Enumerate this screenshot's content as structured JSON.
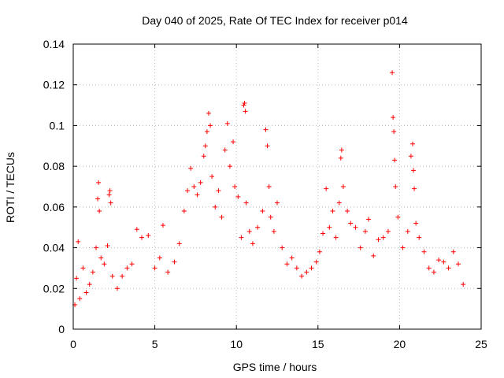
{
  "chart_data": {
    "type": "scatter",
    "title": "Day 040 of 2025, Rate Of TEC Index for receiver p014",
    "xlabel": "GPS time / hours",
    "ylabel": "ROTI / TECUs",
    "xlim": [
      0,
      25
    ],
    "ylim": [
      0,
      0.14
    ],
    "xticks": [
      0,
      5,
      10,
      15,
      20,
      25
    ],
    "yticks": [
      0,
      0.02,
      0.04,
      0.06,
      0.08,
      0.1,
      0.12,
      0.14
    ],
    "xtick_labels": [
      "0",
      "5",
      "10",
      "15",
      "20",
      "25"
    ],
    "ytick_labels": [
      "0",
      "0.02",
      "0.04",
      "0.06",
      "0.08",
      "0.1",
      "0.12",
      "0.14"
    ],
    "grid": true,
    "marker": "+",
    "color": "#ff0000",
    "series": [
      {
        "name": "p014",
        "points": [
          [
            0.1,
            0.012
          ],
          [
            0.2,
            0.025
          ],
          [
            0.3,
            0.043
          ],
          [
            0.4,
            0.015
          ],
          [
            0.6,
            0.03
          ],
          [
            0.8,
            0.018
          ],
          [
            1.0,
            0.022
          ],
          [
            1.2,
            0.028
          ],
          [
            1.4,
            0.04
          ],
          [
            1.5,
            0.064
          ],
          [
            1.55,
            0.072
          ],
          [
            1.6,
            0.058
          ],
          [
            1.7,
            0.035
          ],
          [
            1.9,
            0.032
          ],
          [
            2.1,
            0.041
          ],
          [
            2.2,
            0.066
          ],
          [
            2.25,
            0.068
          ],
          [
            2.3,
            0.062
          ],
          [
            2.4,
            0.026
          ],
          [
            2.7,
            0.02
          ],
          [
            3.0,
            0.026
          ],
          [
            3.3,
            0.03
          ],
          [
            3.6,
            0.032
          ],
          [
            3.9,
            0.049
          ],
          [
            4.2,
            0.045
          ],
          [
            4.6,
            0.046
          ],
          [
            5.0,
            0.03
          ],
          [
            5.3,
            0.035
          ],
          [
            5.5,
            0.051
          ],
          [
            5.8,
            0.028
          ],
          [
            6.2,
            0.033
          ],
          [
            6.5,
            0.042
          ],
          [
            6.8,
            0.058
          ],
          [
            7.0,
            0.068
          ],
          [
            7.2,
            0.079
          ],
          [
            7.4,
            0.07
          ],
          [
            7.6,
            0.066
          ],
          [
            7.8,
            0.072
          ],
          [
            8.0,
            0.085
          ],
          [
            8.1,
            0.09
          ],
          [
            8.2,
            0.097
          ],
          [
            8.3,
            0.106
          ],
          [
            8.4,
            0.1
          ],
          [
            8.5,
            0.075
          ],
          [
            8.7,
            0.06
          ],
          [
            8.9,
            0.068
          ],
          [
            9.1,
            0.055
          ],
          [
            9.3,
            0.088
          ],
          [
            9.45,
            0.101
          ],
          [
            9.6,
            0.08
          ],
          [
            9.8,
            0.092
          ],
          [
            9.9,
            0.07
          ],
          [
            10.1,
            0.065
          ],
          [
            10.3,
            0.045
          ],
          [
            10.45,
            0.11
          ],
          [
            10.5,
            0.111
          ],
          [
            10.55,
            0.107
          ],
          [
            10.6,
            0.062
          ],
          [
            10.8,
            0.048
          ],
          [
            11.0,
            0.042
          ],
          [
            11.3,
            0.05
          ],
          [
            11.6,
            0.058
          ],
          [
            11.8,
            0.098
          ],
          [
            11.9,
            0.09
          ],
          [
            12.0,
            0.07
          ],
          [
            12.1,
            0.055
          ],
          [
            12.3,
            0.048
          ],
          [
            12.5,
            0.062
          ],
          [
            12.8,
            0.04
          ],
          [
            13.1,
            0.032
          ],
          [
            13.4,
            0.035
          ],
          [
            13.7,
            0.03
          ],
          [
            14.0,
            0.026
          ],
          [
            14.3,
            0.028
          ],
          [
            14.6,
            0.03
          ],
          [
            14.9,
            0.033
          ],
          [
            15.1,
            0.038
          ],
          [
            15.3,
            0.047
          ],
          [
            15.5,
            0.069
          ],
          [
            15.7,
            0.05
          ],
          [
            15.9,
            0.058
          ],
          [
            16.1,
            0.045
          ],
          [
            16.3,
            0.062
          ],
          [
            16.4,
            0.084
          ],
          [
            16.45,
            0.088
          ],
          [
            16.55,
            0.07
          ],
          [
            16.8,
            0.058
          ],
          [
            17.0,
            0.052
          ],
          [
            17.3,
            0.05
          ],
          [
            17.6,
            0.04
          ],
          [
            17.9,
            0.048
          ],
          [
            18.1,
            0.054
          ],
          [
            18.4,
            0.036
          ],
          [
            18.7,
            0.044
          ],
          [
            19.0,
            0.045
          ],
          [
            19.3,
            0.048
          ],
          [
            19.55,
            0.126
          ],
          [
            19.6,
            0.104
          ],
          [
            19.65,
            0.097
          ],
          [
            19.7,
            0.083
          ],
          [
            19.75,
            0.07
          ],
          [
            19.9,
            0.055
          ],
          [
            20.2,
            0.04
          ],
          [
            20.5,
            0.048
          ],
          [
            20.7,
            0.085
          ],
          [
            20.8,
            0.091
          ],
          [
            20.85,
            0.078
          ],
          [
            20.9,
            0.069
          ],
          [
            21.0,
            0.052
          ],
          [
            21.2,
            0.045
          ],
          [
            21.5,
            0.038
          ],
          [
            21.8,
            0.03
          ],
          [
            22.1,
            0.028
          ],
          [
            22.4,
            0.034
          ],
          [
            22.7,
            0.033
          ],
          [
            23.0,
            0.03
          ],
          [
            23.3,
            0.038
          ],
          [
            23.6,
            0.032
          ],
          [
            23.9,
            0.022
          ]
        ]
      }
    ]
  }
}
